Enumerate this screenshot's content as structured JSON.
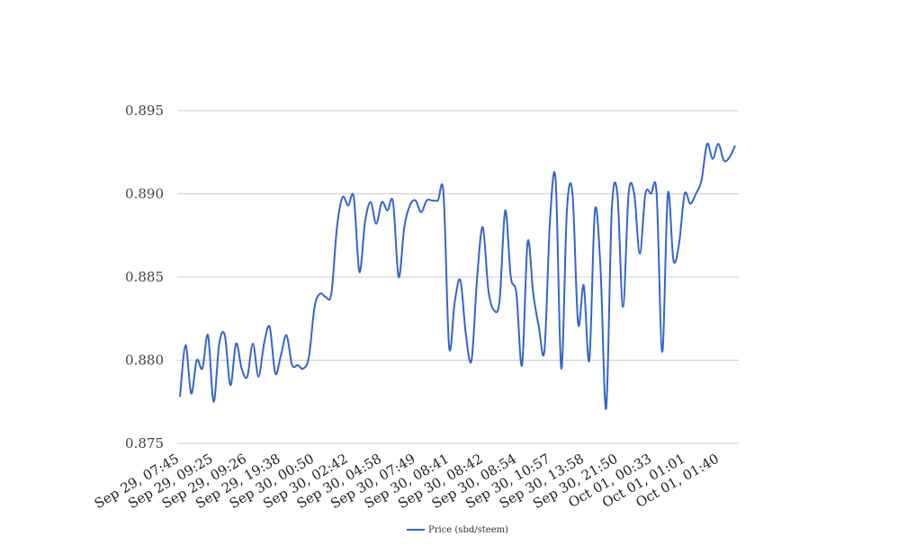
{
  "chart_data": {
    "type": "line",
    "title": "",
    "xlabel": "",
    "ylabel": "",
    "ylim": [
      0.875,
      0.895
    ],
    "yticks": [
      "0.875",
      "0.880",
      "0.885",
      "0.890",
      "0.895"
    ],
    "xticks": [
      "Sep 29, 07:45",
      "Sep 29, 09:25",
      "Sep 29, 09:26",
      "Sep 29, 19:38",
      "Sep 30, 00:50",
      "Sep 30, 02:42",
      "Sep 30, 04:58",
      "Sep 30, 07:49",
      "Sep 30, 08:41",
      "Sep 30, 08:42",
      "Sep 30, 08:54",
      "Sep 30, 10:57",
      "Sep 30, 13:58",
      "Sep 30, 21:50",
      "Oct 01, 00:33",
      "Oct 01, 01:01",
      "Oct 01, 01:40"
    ],
    "legend": {
      "position": "bottom"
    },
    "grid": true,
    "series": [
      {
        "name": "Price (sbd/steem)",
        "color": "#3366cc",
        "values": [
          0.8778,
          0.8809,
          0.878,
          0.88,
          0.8795,
          0.8815,
          0.8775,
          0.881,
          0.8815,
          0.8785,
          0.881,
          0.8795,
          0.879,
          0.881,
          0.879,
          0.881,
          0.882,
          0.8792,
          0.8803,
          0.8815,
          0.8797,
          0.8797,
          0.8795,
          0.8802,
          0.8832,
          0.884,
          0.8838,
          0.884,
          0.888,
          0.8898,
          0.8893,
          0.8898,
          0.8853,
          0.8883,
          0.8895,
          0.8882,
          0.8895,
          0.889,
          0.8895,
          0.885,
          0.888,
          0.8893,
          0.8896,
          0.8889,
          0.8896,
          0.8896,
          0.8896,
          0.89,
          0.8808,
          0.8835,
          0.8848,
          0.8815,
          0.88,
          0.885,
          0.888,
          0.8842,
          0.883,
          0.8836,
          0.889,
          0.885,
          0.884,
          0.8797,
          0.8871,
          0.884,
          0.882,
          0.8806,
          0.8885,
          0.8908,
          0.8795,
          0.889,
          0.89,
          0.8822,
          0.8845,
          0.88,
          0.889,
          0.8855,
          0.8771,
          0.889,
          0.89,
          0.8832,
          0.89,
          0.89,
          0.8864,
          0.89,
          0.89,
          0.89,
          0.8805,
          0.89,
          0.886,
          0.887,
          0.89,
          0.8894,
          0.89,
          0.8908,
          0.893,
          0.8921,
          0.893,
          0.892,
          0.8922,
          0.8929
        ]
      }
    ]
  }
}
